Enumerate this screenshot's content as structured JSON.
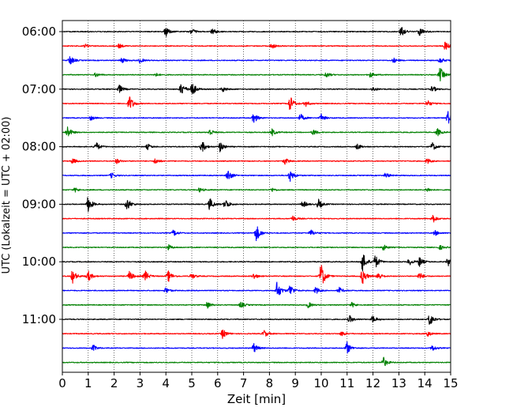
{
  "chart_data": {
    "type": "line",
    "title": "",
    "xlabel": "Zeit  [min]",
    "ylabel": "UTC (Lokalzeit = UTC + 02:00)",
    "xlim": [
      0,
      15
    ],
    "x_ticks": [
      "0",
      "1",
      "2",
      "3",
      "4",
      "5",
      "6",
      "7",
      "8",
      "9",
      "10",
      "11",
      "12",
      "13",
      "14",
      "15"
    ],
    "y_time_labels": [
      "06:00",
      "07:00",
      "08:00",
      "09:00",
      "10:00",
      "11:00"
    ],
    "grid": "vertical-dotted",
    "legend": "none",
    "colors": [
      "#000000",
      "#ff0000",
      "#0000ff",
      "#008000"
    ],
    "trace_interval_min": 15,
    "series": [
      {
        "start": "06:00",
        "color": "#000000",
        "bursts": [
          [
            4.0,
            0.9
          ],
          [
            5.0,
            0.45
          ],
          [
            5.8,
            0.55
          ],
          [
            13.1,
            0.8
          ],
          [
            13.8,
            0.7
          ]
        ]
      },
      {
        "start": "06:15",
        "color": "#ff0000",
        "bursts": [
          [
            0.9,
            0.3
          ],
          [
            2.2,
            0.35
          ],
          [
            8.1,
            0.45
          ],
          [
            14.8,
            0.7
          ]
        ]
      },
      {
        "start": "06:30",
        "color": "#0000ff",
        "bursts": [
          [
            0.3,
            0.8
          ],
          [
            2.3,
            0.45
          ],
          [
            3.0,
            0.4
          ],
          [
            12.8,
            0.4
          ],
          [
            14.6,
            0.5
          ]
        ]
      },
      {
        "start": "06:45",
        "color": "#008000",
        "bursts": [
          [
            1.3,
            0.35
          ],
          [
            3.6,
            0.3
          ],
          [
            10.2,
            0.45
          ],
          [
            11.9,
            0.45
          ],
          [
            14.6,
            1.2
          ]
        ]
      },
      {
        "start": "07:00",
        "color": "#000000",
        "bursts": [
          [
            2.2,
            0.7
          ],
          [
            4.6,
            1.1
          ],
          [
            5.0,
            1.3
          ],
          [
            6.2,
            0.45
          ],
          [
            12.0,
            0.4
          ],
          [
            14.3,
            0.55
          ]
        ]
      },
      {
        "start": "07:15",
        "color": "#ff0000",
        "bursts": [
          [
            2.6,
            1.3
          ],
          [
            8.8,
            1.3
          ],
          [
            9.4,
            0.5
          ],
          [
            14.1,
            0.6
          ]
        ]
      },
      {
        "start": "07:30",
        "color": "#0000ff",
        "bursts": [
          [
            1.1,
            0.4
          ],
          [
            7.4,
            0.9
          ],
          [
            9.2,
            0.65
          ],
          [
            10.0,
            0.6
          ],
          [
            14.9,
            1.1
          ]
        ]
      },
      {
        "start": "07:45",
        "color": "#008000",
        "bursts": [
          [
            0.2,
            1.0
          ],
          [
            5.7,
            0.55
          ],
          [
            8.1,
            0.6
          ],
          [
            9.7,
            0.5
          ],
          [
            14.5,
            0.6
          ]
        ]
      },
      {
        "start": "08:00",
        "color": "#000000",
        "bursts": [
          [
            1.3,
            0.8
          ],
          [
            3.3,
            0.45
          ],
          [
            5.4,
            0.95
          ],
          [
            6.1,
            0.85
          ],
          [
            11.4,
            0.5
          ],
          [
            14.3,
            0.7
          ]
        ]
      },
      {
        "start": "08:15",
        "color": "#ff0000",
        "bursts": [
          [
            0.4,
            0.45
          ],
          [
            2.1,
            0.4
          ],
          [
            3.6,
            0.5
          ],
          [
            8.6,
            0.55
          ],
          [
            14.1,
            0.45
          ]
        ]
      },
      {
        "start": "08:30",
        "color": "#0000ff",
        "bursts": [
          [
            1.9,
            0.45
          ],
          [
            6.4,
            1.0
          ],
          [
            8.8,
            1.0
          ],
          [
            12.5,
            0.45
          ]
        ]
      },
      {
        "start": "08:45",
        "color": "#008000",
        "bursts": [
          [
            0.5,
            0.35
          ],
          [
            5.3,
            0.35
          ],
          [
            8.1,
            0.3
          ],
          [
            14.1,
            0.35
          ]
        ]
      },
      {
        "start": "09:00",
        "color": "#000000",
        "bursts": [
          [
            1.0,
            1.3
          ],
          [
            2.5,
            1.1
          ],
          [
            5.7,
            1.0
          ],
          [
            6.3,
            0.9
          ],
          [
            9.3,
            0.6
          ],
          [
            9.9,
            0.8
          ]
        ]
      },
      {
        "start": "09:15",
        "color": "#ff0000",
        "bursts": [
          [
            8.9,
            0.45
          ],
          [
            14.3,
            0.8
          ]
        ]
      },
      {
        "start": "09:30",
        "color": "#0000ff",
        "bursts": [
          [
            4.3,
            0.55
          ],
          [
            7.5,
            1.4
          ],
          [
            9.6,
            0.55
          ],
          [
            14.4,
            0.45
          ]
        ]
      },
      {
        "start": "09:45",
        "color": "#008000",
        "bursts": [
          [
            4.1,
            0.45
          ],
          [
            12.4,
            0.5
          ],
          [
            14.6,
            0.35
          ]
        ]
      },
      {
        "start": "10:00",
        "color": "#000000",
        "bursts": [
          [
            11.6,
            1.6
          ],
          [
            12.1,
            1.1
          ],
          [
            13.4,
            0.6
          ],
          [
            13.8,
            0.8
          ],
          [
            14.9,
            0.7
          ]
        ]
      },
      {
        "start": "10:15",
        "color": "#ff0000",
        "bursts": [
          [
            0.4,
            1.1
          ],
          [
            1.0,
            0.9
          ],
          [
            2.6,
            0.8
          ],
          [
            3.2,
            0.9
          ],
          [
            4.1,
            0.9
          ],
          [
            5.0,
            0.5
          ],
          [
            7.4,
            0.5
          ],
          [
            10.0,
            2.2
          ],
          [
            11.6,
            1.3
          ],
          [
            12.2,
            0.7
          ],
          [
            13.8,
            0.6
          ]
        ]
      },
      {
        "start": "10:30",
        "color": "#0000ff",
        "bursts": [
          [
            4.0,
            0.5
          ],
          [
            8.3,
            1.5
          ],
          [
            8.8,
            1.0
          ],
          [
            9.8,
            0.6
          ],
          [
            10.7,
            0.5
          ]
        ]
      },
      {
        "start": "10:45",
        "color": "#008000",
        "bursts": [
          [
            5.6,
            0.6
          ],
          [
            6.9,
            0.5
          ],
          [
            9.5,
            0.5
          ],
          [
            11.2,
            0.4
          ]
        ]
      },
      {
        "start": "11:00",
        "color": "#000000",
        "bursts": [
          [
            11.1,
            0.6
          ],
          [
            12.0,
            0.6
          ],
          [
            14.2,
            1.1
          ]
        ]
      },
      {
        "start": "11:15",
        "color": "#ff0000",
        "bursts": [
          [
            6.2,
            0.8
          ],
          [
            7.8,
            0.6
          ],
          [
            10.8,
            0.4
          ],
          [
            14.1,
            0.5
          ]
        ]
      },
      {
        "start": "11:30",
        "color": "#0000ff",
        "bursts": [
          [
            1.2,
            0.5
          ],
          [
            7.4,
            0.8
          ],
          [
            11.0,
            1.0
          ],
          [
            14.3,
            0.5
          ]
        ]
      },
      {
        "start": "11:45",
        "color": "#008000",
        "bursts": [
          [
            12.4,
            0.9
          ]
        ]
      }
    ]
  }
}
